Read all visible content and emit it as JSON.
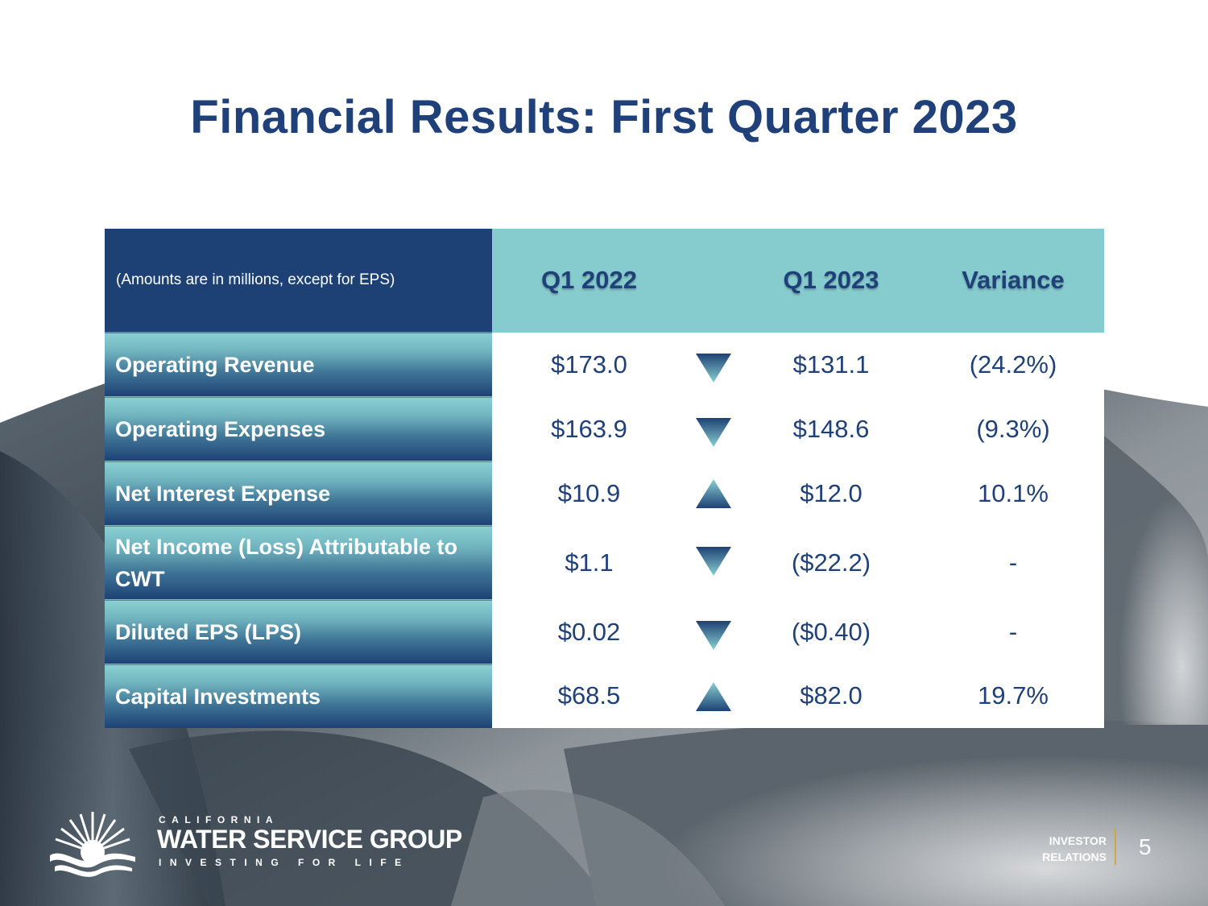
{
  "slide": {
    "title": "Financial Results: First Quarter 2023",
    "page_number": "5"
  },
  "table": {
    "note": "(Amounts are in millions, except for EPS)",
    "columns": [
      "Q1 2022",
      "Q1 2023",
      "Variance"
    ],
    "rows": [
      {
        "label": "Operating Revenue",
        "q1_2022": "$173.0",
        "trend": "down",
        "q1_2023": "$131.1",
        "variance": "(24.2%)"
      },
      {
        "label": "Operating Expenses",
        "q1_2022": "$163.9",
        "trend": "down",
        "q1_2023": "$148.6",
        "variance": "(9.3%)"
      },
      {
        "label": "Net Interest Expense",
        "q1_2022": "$10.9",
        "trend": "up",
        "q1_2023": "$12.0",
        "variance": "10.1%"
      },
      {
        "label": "Net Income (Loss) Attributable to CWT",
        "q1_2022": "$1.1",
        "trend": "down",
        "q1_2023": "($22.2)",
        "variance": "-"
      },
      {
        "label": "Diluted EPS (LPS)",
        "q1_2022": "$0.02",
        "trend": "down",
        "q1_2023": "($0.40)",
        "variance": "-"
      },
      {
        "label": "Capital Investments",
        "q1_2022": "$68.5",
        "trend": "up",
        "q1_2023": "$82.0",
        "variance": "19.7%"
      }
    ]
  },
  "footer": {
    "brand_top": "CALIFORNIA",
    "brand_main": "WATER SERVICE GROUP",
    "brand_tagline": "INVESTING FOR LIFE",
    "investor_line1": "INVESTOR",
    "investor_line2": "RELATIONS"
  },
  "colors": {
    "title": "#1f4079",
    "header_dark": "#1d4174",
    "header_teal": "#86cbcd"
  },
  "icons": {
    "down": "down-triangle-icon",
    "up": "up-triangle-icon"
  }
}
